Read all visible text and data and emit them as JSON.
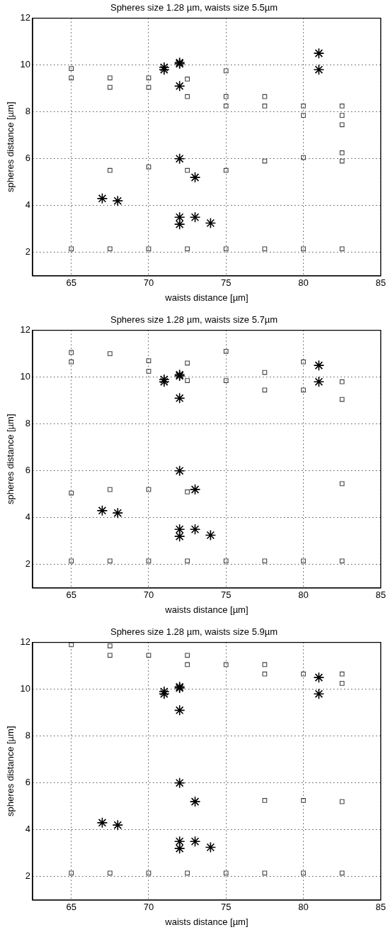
{
  "chart_data": [
    {
      "type": "scatter",
      "title": "Spheres size 1.28 µm, waists size 5.5µm",
      "xlabel": "waists distance [µm]",
      "ylabel": "spheres distance [µm]",
      "xlim": [
        62.5,
        85
      ],
      "ylim": [
        1,
        12
      ],
      "xticks": [
        65,
        70,
        75,
        80,
        85
      ],
      "yticks": [
        2,
        4,
        6,
        8,
        10,
        12
      ],
      "grid": true,
      "series": [
        {
          "color": "#444444",
          "marker": "square",
          "x": [
            65,
            65,
            65,
            67.5,
            67.5,
            67.5,
            67.5,
            70,
            70,
            70,
            70,
            72.5,
            72.5,
            72.5,
            72.5,
            75,
            75,
            75,
            75,
            75,
            77.5,
            77.5,
            77.5,
            77.5,
            80,
            80,
            80,
            80,
            82.5,
            82.5,
            82.5,
            82.5,
            82.5,
            82.5
          ],
          "values": [
            9.85,
            9.45,
            2.15,
            9.45,
            9.05,
            5.5,
            2.15,
            9.45,
            9.05,
            5.65,
            2.15,
            9.4,
            8.65,
            5.5,
            2.15,
            9.75,
            8.65,
            8.25,
            5.5,
            2.15,
            8.65,
            8.25,
            5.9,
            2.15,
            8.25,
            7.85,
            6.05,
            2.15,
            8.25,
            7.85,
            7.45,
            6.25,
            5.9,
            2.15
          ]
        },
        {
          "color": "#000000",
          "marker": "cross",
          "x": [
            67,
            68,
            71,
            71,
            72,
            72,
            72,
            72,
            72,
            72,
            73,
            73,
            74,
            81,
            81
          ],
          "values": [
            4.3,
            4.2,
            9.8,
            9.9,
            10.05,
            10.1,
            9.1,
            6.0,
            3.5,
            3.2,
            3.5,
            5.2,
            3.25,
            10.5,
            9.8
          ]
        }
      ]
    },
    {
      "type": "scatter",
      "title": "Spheres size 1.28 µm, waists size 5.7µm",
      "xlabel": "waists distance [µm]",
      "ylabel": "spheres distance [µm]",
      "xlim": [
        62.5,
        85
      ],
      "ylim": [
        1,
        12
      ],
      "xticks": [
        65,
        70,
        75,
        80,
        85
      ],
      "yticks": [
        2,
        4,
        6,
        8,
        10,
        12
      ],
      "grid": true,
      "series": [
        {
          "color": "#444444",
          "marker": "square",
          "x": [
            65,
            65,
            65,
            65,
            67.5,
            67.5,
            67.5,
            70,
            70,
            70,
            70,
            72.5,
            72.5,
            72.5,
            72.5,
            75,
            75,
            75,
            77.5,
            77.5,
            77.5,
            80,
            80,
            80,
            82.5,
            82.5,
            82.5,
            82.5
          ],
          "values": [
            11.05,
            10.65,
            5.05,
            2.15,
            11.0,
            5.2,
            2.15,
            10.7,
            10.25,
            5.2,
            2.15,
            10.6,
            9.85,
            5.1,
            2.15,
            11.1,
            9.85,
            2.15,
            10.2,
            9.45,
            2.15,
            10.65,
            9.45,
            2.15,
            9.8,
            9.05,
            5.45,
            2.15
          ]
        },
        {
          "color": "#000000",
          "marker": "cross",
          "x": [
            67,
            68,
            71,
            71,
            72,
            72,
            72,
            72,
            72,
            72,
            73,
            73,
            74,
            81,
            81
          ],
          "values": [
            4.3,
            4.2,
            9.8,
            9.9,
            10.05,
            10.1,
            9.1,
            6.0,
            3.5,
            3.2,
            3.5,
            5.2,
            3.25,
            10.5,
            9.8
          ]
        }
      ]
    },
    {
      "type": "scatter",
      "title": "Spheres size 1.28 µm, waists size 5.9µm",
      "xlabel": "waists distance [µm]",
      "ylabel": "spheres distance [µm]",
      "xlim": [
        62.5,
        85
      ],
      "ylim": [
        1,
        12
      ],
      "xticks": [
        65,
        70,
        75,
        80,
        85
      ],
      "yticks": [
        2,
        4,
        6,
        8,
        10,
        12
      ],
      "grid": true,
      "series": [
        {
          "color": "#444444",
          "marker": "square",
          "x": [
            65,
            65,
            67.5,
            67.5,
            67.5,
            70,
            70,
            72.5,
            72.5,
            72.5,
            75,
            75,
            77.5,
            77.5,
            77.5,
            77.5,
            80,
            80,
            80,
            82.5,
            82.5,
            82.5,
            82.5
          ],
          "values": [
            11.9,
            2.15,
            11.85,
            11.45,
            2.15,
            11.45,
            2.15,
            11.45,
            11.05,
            2.15,
            11.05,
            2.15,
            11.05,
            10.65,
            5.25,
            2.15,
            10.65,
            5.25,
            2.15,
            10.65,
            10.25,
            5.2,
            2.15
          ]
        },
        {
          "color": "#000000",
          "marker": "cross",
          "x": [
            67,
            68,
            71,
            71,
            72,
            72,
            72,
            72,
            72,
            72,
            73,
            73,
            74,
            81,
            81
          ],
          "values": [
            4.3,
            4.2,
            9.8,
            9.9,
            10.05,
            10.1,
            9.1,
            6.0,
            3.5,
            3.2,
            3.5,
            5.2,
            3.25,
            10.5,
            9.8
          ]
        }
      ]
    }
  ]
}
